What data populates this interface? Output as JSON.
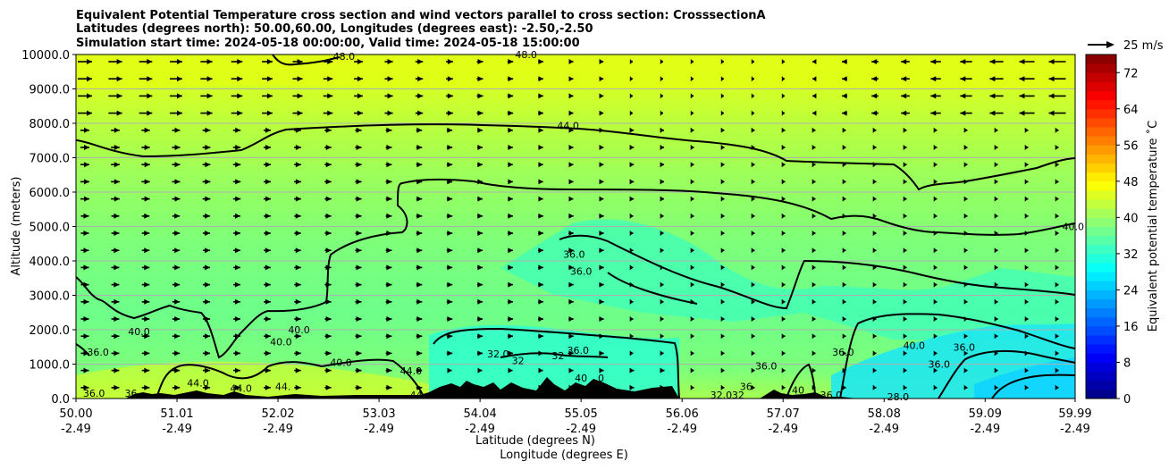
{
  "title": {
    "line1": "Equivalent Potential Temperature cross section and wind vectors parallel to cross section: CrosssectionA",
    "line2": "Latitudes (degrees north): 50.00,60.00, Longitudes (degrees east): -2.50,-2.50",
    "line3": "Simulation start time: 2024-05-18 00:00:00, Valid time: 2024-05-18 15:00:00"
  },
  "chart_data": {
    "type": "heatmap",
    "overlay": [
      "contour",
      "quiver"
    ],
    "xlabel_lat": "Latitude (degrees N)",
    "xlabel_lon": "Longitude (degrees E)",
    "ylabel": "Altitude (meters)",
    "xlim": [
      50.0,
      59.99
    ],
    "ylim": [
      0,
      10000
    ],
    "grid": "horizontal",
    "x_ticks": [
      {
        "lat": "50.00",
        "lon": "-2.49",
        "value": 50.0
      },
      {
        "lat": "51.01",
        "lon": "-2.49",
        "value": 51.01
      },
      {
        "lat": "52.02",
        "lon": "-2.49",
        "value": 52.02
      },
      {
        "lat": "53.03",
        "lon": "-2.49",
        "value": 53.03
      },
      {
        "lat": "54.04",
        "lon": "-2.49",
        "value": 54.04
      },
      {
        "lat": "55.05",
        "lon": "-2.49",
        "value": 55.05
      },
      {
        "lat": "56.06",
        "lon": "-2.49",
        "value": 56.06
      },
      {
        "lat": "57.07",
        "lon": "-2.49",
        "value": 57.07
      },
      {
        "lat": "58.08",
        "lon": "-2.49",
        "value": 58.08
      },
      {
        "lat": "59.09",
        "lon": "-2.49",
        "value": 59.09
      },
      {
        "lat": "59.99",
        "lon": "-2.49",
        "value": 59.99
      }
    ],
    "y_ticks": [
      {
        "label": "0.0",
        "value": 0
      },
      {
        "label": "1000.0",
        "value": 1000
      },
      {
        "label": "2000.0",
        "value": 2000
      },
      {
        "label": "3000.0",
        "value": 3000
      },
      {
        "label": "4000.0",
        "value": 4000
      },
      {
        "label": "5000.0",
        "value": 5000
      },
      {
        "label": "6000.0",
        "value": 6000
      },
      {
        "label": "7000.0",
        "value": 7000
      },
      {
        "label": "8000.0",
        "value": 8000
      },
      {
        "label": "9000.0",
        "value": 9000
      },
      {
        "label": "10000.0",
        "value": 10000
      }
    ],
    "colorbar": {
      "label": "Equivalent potential temperature $^\\circ$C",
      "label_text": "Equivalent potential temperature ˚C",
      "min": 0,
      "max": 76,
      "step": 2,
      "ticks": [
        0,
        8,
        16,
        24,
        32,
        40,
        48,
        56,
        64,
        72
      ]
    },
    "quiver_key": {
      "label": "25 m/s",
      "speed": 25
    },
    "contour_levels": [
      28.0,
      32.0,
      36.0,
      40.0,
      44.0,
      48.0
    ],
    "contour_labels": [
      {
        "text": "48.0",
        "x": 52.68,
        "y": 9950
      },
      {
        "text": "48.0",
        "x": 54.5,
        "y": 10000
      },
      {
        "text": "44.0",
        "x": 54.92,
        "y": 7930
      },
      {
        "text": "36.0",
        "x": 54.98,
        "y": 4200
      },
      {
        "text": "36.0",
        "x": 55.05,
        "y": 3700
      },
      {
        "text": "40.0",
        "x": 50.63,
        "y": 1950
      },
      {
        "text": "40.0",
        "x": 52.23,
        "y": 2000
      },
      {
        "text": "40.0",
        "x": 52.05,
        "y": 1650
      },
      {
        "text": "36.0",
        "x": 50.22,
        "y": 1350
      },
      {
        "text": "36.0",
        "x": 50.18,
        "y": 150
      },
      {
        "text": "36",
        "x": 50.55,
        "y": 150
      },
      {
        "text": "44.0",
        "x": 51.22,
        "y": 450
      },
      {
        "text": "44.0",
        "x": 51.65,
        "y": 300
      },
      {
        "text": "44.",
        "x": 52.07,
        "y": 350
      },
      {
        "text": "40.0",
        "x": 52.65,
        "y": 1050
      },
      {
        "text": "44.0",
        "x": 53.35,
        "y": 800
      },
      {
        "text": "44",
        "x": 53.4,
        "y": 100
      },
      {
        "text": "32.0",
        "x": 54.22,
        "y": 1300
      },
      {
        "text": "32",
        "x": 54.42,
        "y": 1100
      },
      {
        "text": "32",
        "x": 54.82,
        "y": 1250
      },
      {
        "text": "36.0",
        "x": 55.02,
        "y": 1400
      },
      {
        "text": "40",
        "x": 55.05,
        "y": 600
      },
      {
        "text": "0",
        "x": 55.25,
        "y": 600
      },
      {
        "text": "32.0",
        "x": 56.45,
        "y": 100
      },
      {
        "text": "36.0",
        "x": 56.9,
        "y": 950
      },
      {
        "text": "36",
        "x": 56.7,
        "y": 350
      },
      {
        "text": "32",
        "x": 56.62,
        "y": 100
      },
      {
        "text": "40",
        "x": 57.22,
        "y": 250
      },
      {
        "text": "36.0",
        "x": 57.55,
        "y": 100
      },
      {
        "text": "28.0",
        "x": 58.22,
        "y": 50
      },
      {
        "text": "36.0",
        "x": 57.67,
        "y": 1350
      },
      {
        "text": "40.0",
        "x": 58.38,
        "y": 1550
      },
      {
        "text": "36.0",
        "x": 58.63,
        "y": 1000
      },
      {
        "text": "36.0",
        "x": 58.88,
        "y": 1500
      },
      {
        "text": "40.0",
        "x": 59.97,
        "y": 5000
      }
    ]
  }
}
